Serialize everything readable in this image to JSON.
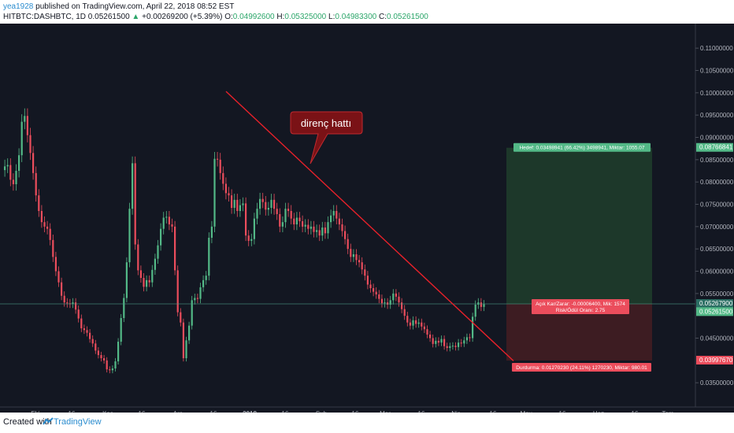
{
  "header": {
    "username": "yea1928",
    "published_text": "published on TradingView.com, April 22, 2018 08:52 EST",
    "symbol": "HITBTC:DASHBTC, 1D",
    "last_price": "0.05261500",
    "change_arrow": "▲",
    "change": "+0.00269200 (+5.39%)",
    "o_label": "O:",
    "o_value": "0.04992600",
    "h_label": "H:",
    "h_value": "0.05325000",
    "l_label": "L:",
    "l_value": "0.04983300",
    "c_label": "C:",
    "c_value": "0.05261500"
  },
  "footer": {
    "created_with": "Created with",
    "brand": "TradingView"
  },
  "colors": {
    "background": "#131722",
    "up": "#53b987",
    "down": "#eb4d5c",
    "trendline": "#e8212a",
    "target_zone": "#1d3a2b",
    "stop_zone": "#3f1c23",
    "target_label": "#53b987",
    "stop_label": "#eb4d5c",
    "current_price_line": "#4c9a86",
    "axis_text": "#b2b5be"
  },
  "chart_data": {
    "type": "candlestick",
    "title": "",
    "xlabel": "",
    "ylabel": "",
    "ylim": [
      0.0315,
      0.1155
    ],
    "x_ticks": [
      "Eki",
      "16",
      "Kas",
      "16",
      "Ara",
      "16",
      "2018",
      "16",
      "Şub",
      "16",
      "Mar",
      "16",
      "Nis",
      "16",
      "May",
      "16",
      "Haz",
      "16",
      "Tem"
    ],
    "y_ticks": [
      "0.11000000",
      "0.10500000",
      "0.10000000",
      "0.09500000",
      "0.09000000",
      "0.08500000",
      "0.08000000",
      "0.07500000",
      "0.07000000",
      "0.06500000",
      "0.06000000",
      "0.05500000",
      "0.04500000",
      "0.03500000"
    ],
    "price_markers": [
      {
        "label": "0.08766841",
        "value": 0.08766841,
        "kind": "target"
      },
      {
        "label": "0.05267900",
        "value": 0.052679,
        "kind": "current"
      },
      {
        "label": "0.05261500",
        "value": 0.052615,
        "kind": "last"
      },
      {
        "label": "0.03997670",
        "value": 0.0399767,
        "kind": "stop"
      }
    ],
    "close_approx": [
      0.0835,
      0.0838,
      0.0805,
      0.0795,
      0.0825,
      0.086,
      0.0935,
      0.0948,
      0.0905,
      0.0865,
      0.082,
      0.077,
      0.0735,
      0.071,
      0.07,
      0.0695,
      0.067,
      0.0632,
      0.06,
      0.0575,
      0.0545,
      0.053,
      0.0528,
      0.0527,
      0.053,
      0.0514,
      0.0494,
      0.0472,
      0.0468,
      0.0462,
      0.0448,
      0.0438,
      0.0422,
      0.0412,
      0.0405,
      0.04,
      0.038,
      0.0378,
      0.0382,
      0.0398,
      0.0442,
      0.0495,
      0.054,
      0.062,
      0.074,
      0.0842,
      0.066,
      0.0602,
      0.0585,
      0.0565,
      0.058,
      0.0575,
      0.0603,
      0.0628,
      0.0658,
      0.0695,
      0.072,
      0.0722,
      0.0705,
      0.07,
      0.0602,
      0.0508,
      0.0485,
      0.0405,
      0.0445,
      0.0478,
      0.0535,
      0.054,
      0.0538,
      0.0564,
      0.058,
      0.059,
      0.0675,
      0.07,
      0.0852,
      0.085,
      0.082,
      0.0796,
      0.0775,
      0.077,
      0.0742,
      0.076,
      0.0735,
      0.0748,
      0.0752,
      0.068,
      0.0668,
      0.0672,
      0.0718,
      0.074,
      0.0762,
      0.0755,
      0.0738,
      0.0742,
      0.076,
      0.074,
      0.0728,
      0.07,
      0.071,
      0.074,
      0.0735,
      0.0718,
      0.0705,
      0.072,
      0.0712,
      0.07,
      0.0704,
      0.0695,
      0.07,
      0.0688,
      0.0692,
      0.068,
      0.0698,
      0.0685,
      0.071,
      0.0725,
      0.0735,
      0.0718,
      0.0705,
      0.069,
      0.0672,
      0.065,
      0.0632,
      0.0638,
      0.0625,
      0.062,
      0.0604,
      0.059,
      0.057,
      0.0562,
      0.0554,
      0.0548,
      0.0538,
      0.0528,
      0.053,
      0.0525,
      0.0535,
      0.055,
      0.0543,
      0.053,
      0.0515,
      0.05,
      0.0485,
      0.0478,
      0.049,
      0.0482,
      0.0485,
      0.0476,
      0.047,
      0.0458,
      0.045,
      0.0437,
      0.0444,
      0.044,
      0.0448,
      0.0432,
      0.0428,
      0.0432,
      0.0433,
      0.043,
      0.044,
      0.0438,
      0.0445,
      0.0452,
      0.045,
      0.0498,
      0.0525,
      0.053,
      0.052,
      0.0526
    ],
    "annotations": [
      {
        "type": "trendline",
        "from": {
          "x": "2017-12-19",
          "y": 0.1003
        },
        "to": {
          "x": "2018-04-23",
          "y": 0.0399
        }
      },
      {
        "type": "callout",
        "text": "direnç hattı"
      }
    ],
    "long_position": {
      "target_label": "Hedef: 0.03498941 (66.42%) 3498941, Miktar: 1055.07",
      "open_label_1": "Açık Kar/Zarar: -0.00006400, Mik: 1574",
      "open_label_2": "Risk/Ödül Oranı: 2.75",
      "stop_label": "Durdurma: 0.01270230 (24.11%) 1270230, Miktar: 980.01",
      "target_price": 0.08766841,
      "entry_price": 0.052679,
      "stop_price": 0.0399767
    },
    "grid": false,
    "legend": "none"
  }
}
